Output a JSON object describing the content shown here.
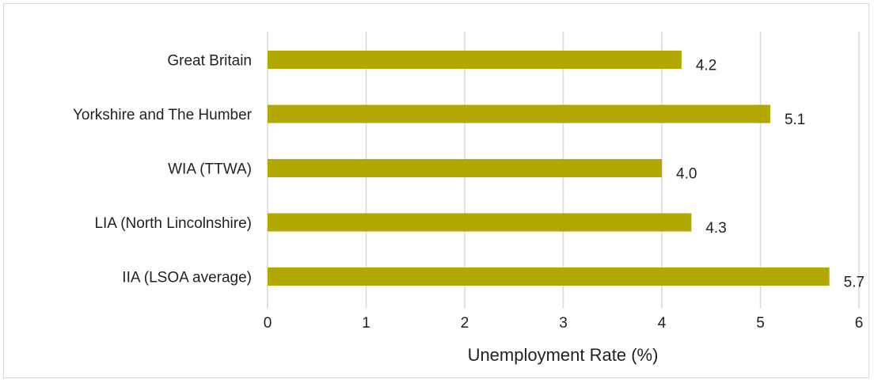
{
  "chart_data": {
    "type": "bar",
    "orientation": "horizontal",
    "categories": [
      "Great Britain",
      "Yorkshire and The Humber",
      "WIA (TTWA)",
      "LIA (North Lincolnshire)",
      "IIA (LSOA average)"
    ],
    "values": [
      4.2,
      5.1,
      4.0,
      4.3,
      5.7
    ],
    "data_labels": [
      "4.2",
      "5.1",
      "4.0",
      "4.3",
      "5.7"
    ],
    "xlabel": "Unemployment Rate (%)",
    "ylabel": "",
    "xlim": [
      0,
      6
    ],
    "xticks": [
      "0",
      "1",
      "2",
      "3",
      "4",
      "5",
      "6"
    ],
    "grid": true,
    "legend": "none",
    "bar_color": "#b3a800",
    "grid_color": "#d9d9d9"
  }
}
